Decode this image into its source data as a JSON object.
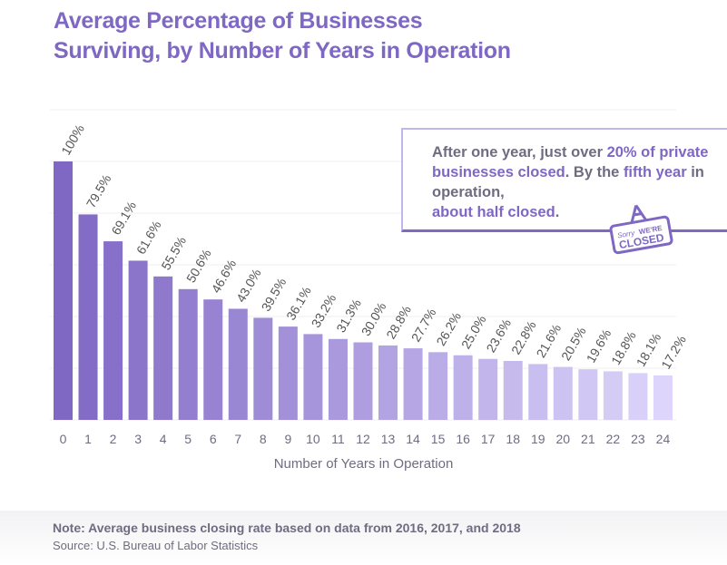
{
  "chart_data": {
    "type": "bar",
    "title": "Average Percentage of Businesses Surviving, by Number of Years in Operation",
    "title_lines": [
      "Average Percentage of Businesses",
      "Surviving, by Number of Years in Operation"
    ],
    "xlabel": "Number of Years in Operation",
    "ylabel": "",
    "categories": [
      "0",
      "1",
      "2",
      "3",
      "4",
      "5",
      "6",
      "7",
      "8",
      "9",
      "10",
      "11",
      "12",
      "13",
      "14",
      "15",
      "16",
      "17",
      "18",
      "19",
      "20",
      "21",
      "22",
      "23",
      "24"
    ],
    "values": [
      100,
      79.5,
      69.1,
      61.6,
      55.5,
      50.6,
      46.6,
      43.0,
      39.5,
      36.1,
      33.2,
      31.3,
      30.0,
      28.8,
      27.7,
      26.2,
      25.0,
      23.6,
      22.8,
      21.6,
      20.5,
      19.6,
      18.8,
      18.1,
      17.2
    ],
    "data_labels": [
      "100%",
      "79.5%",
      "69.1%",
      "61.6%",
      "55.5%",
      "50.6%",
      "46.6%",
      "43.0%",
      "39.5%",
      "36.1%",
      "33.2%",
      "31.3%",
      "30.0%",
      "28.8%",
      "27.7%",
      "26.2%",
      "25.0%",
      "23.6%",
      "22.8%",
      "21.6%",
      "20.5%",
      "19.6%",
      "18.8%",
      "18.1%",
      "17.2%"
    ],
    "ylim": [
      0,
      120
    ],
    "grid": true,
    "colors": {
      "start": "#7f67c4",
      "end": "#ddd5fb"
    }
  },
  "callout": {
    "parts": [
      {
        "text": "After one year, just over ",
        "hl": false
      },
      {
        "text": "20% of private businesses closed",
        "hl": true
      },
      {
        "text": ". By the ",
        "hl": false
      },
      {
        "text": "fifth year",
        "hl": true
      },
      {
        "text": " in operation, ",
        "hl": false
      },
      {
        "text": "about half closed",
        "hl": true
      },
      {
        "text": ".",
        "hl": false
      }
    ],
    "sign_text": [
      "Sorry",
      "WE'RE",
      "CLOSED"
    ],
    "sign_icon": "closed-sign-icon"
  },
  "footer": {
    "note": "Note: Average business closing rate based on data from 2016, 2017, and 2018",
    "source": "Source: U.S. Bureau of Labor Statistics"
  },
  "colors": {
    "accent": "#7f67c4",
    "text": "#6f6c80"
  }
}
